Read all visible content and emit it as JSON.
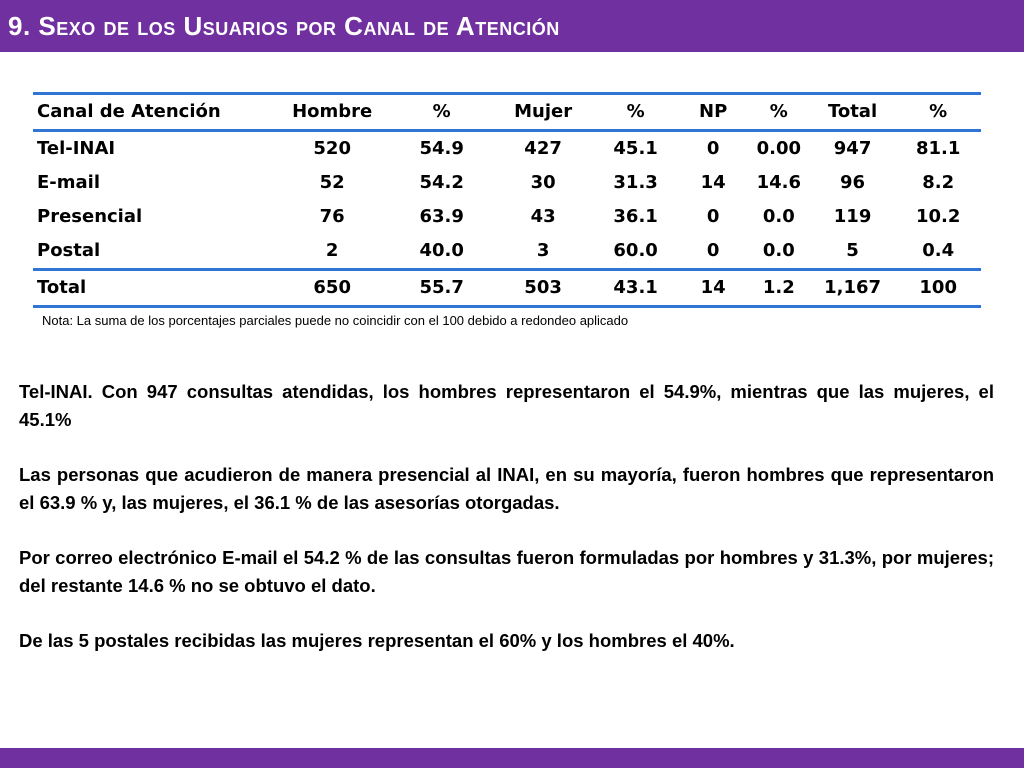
{
  "title": "9. Sexo de los Usuarios por Canal de Atención",
  "table": {
    "headers": [
      "Canal de Atención",
      "Hombre",
      "%",
      "Mujer",
      "%",
      "NP",
      "%",
      "Total",
      "%"
    ],
    "rows": [
      [
        "Tel-INAI",
        "520",
        "54.9",
        "427",
        "45.1",
        "0",
        "0.00",
        "947",
        "81.1"
      ],
      [
        "E-mail",
        "52",
        "54.2",
        "30",
        "31.3",
        "14",
        "14.6",
        "96",
        "8.2"
      ],
      [
        "Presencial",
        "76",
        "63.9",
        "43",
        "36.1",
        "0",
        "0.0",
        "119",
        "10.2"
      ],
      [
        "Postal",
        "2",
        "40.0",
        "3",
        "60.0",
        "0",
        "0.0",
        "5",
        "0.4"
      ]
    ],
    "total": [
      "Total",
      "650",
      "55.7",
      "503",
      "43.1",
      "14",
      "1.2",
      "1,167",
      "100"
    ]
  },
  "note": "Nota: La suma de los porcentajes parciales puede no coincidir con el 100 debido a redondeo aplicado",
  "paragraphs": [
    "Tel-INAI. Con 947 consultas atendidas, los hombres representaron el 54.9%, mientras que las mujeres, el 45.1%",
    "Las personas que acudieron de manera presencial al INAI, en su mayoría, fueron hombres que representaron el 63.9 % y, las mujeres, el 36.1 % de las asesorías otorgadas.",
    "Por correo electrónico E-mail el 54.2 % de las consultas fueron formuladas por hombres y 31.3%, por mujeres; del restante 14.6 % no se obtuvo el dato.",
    "De las 5 postales recibidas las mujeres representan el 60%  y los hombres el 40%."
  ],
  "colors": {
    "accent": "#7030a0",
    "table_rule": "#2e75d6"
  }
}
